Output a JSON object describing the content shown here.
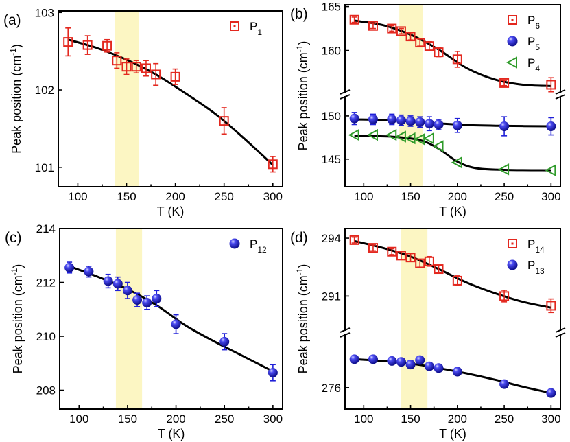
{
  "colors": {
    "red": "#e3281f",
    "blue": "#1f1fd8",
    "green": "#2f9b2a",
    "band": "#fbf5b8"
  },
  "chart_data": [
    {
      "type": "scatter",
      "panel_label": "(a)",
      "xlabel": "T (K)",
      "ylabel": "Peak position (cm",
      "ylabel_sup": "-1",
      "ylabel_close": ")",
      "xlim": [
        80,
        310
      ],
      "ylim": [
        100.75,
        103.02
      ],
      "xticks": [
        "100",
        "150",
        "200",
        "250",
        "300"
      ],
      "yticks": [
        "101",
        "102",
        "103"
      ],
      "highlight_band": [
        138,
        163
      ],
      "series": [
        {
          "name": "P",
          "sub": "1",
          "marker": "square",
          "color": "red",
          "x": [
            90,
            110,
            130,
            140,
            150,
            160,
            170,
            180,
            200,
            250,
            300
          ],
          "y": [
            102.62,
            102.58,
            102.57,
            102.38,
            102.3,
            102.3,
            102.28,
            102.2,
            102.17,
            101.6,
            101.04
          ],
          "err": [
            0.18,
            0.12,
            0.08,
            0.1,
            0.1,
            0.08,
            0.1,
            0.14,
            0.1,
            0.17,
            0.1
          ],
          "fit_x": [
            90,
            120,
            150,
            180,
            210,
            240,
            270,
            300
          ],
          "fit_y": [
            102.65,
            102.54,
            102.39,
            102.2,
            101.96,
            101.7,
            101.38,
            101.03
          ]
        }
      ]
    },
    {
      "type": "scatter",
      "panel_label": "(b)",
      "xlabel": "T (K)",
      "ylabel": "Peak position (cm",
      "ylabel_sup": "-1",
      "ylabel_close": ")",
      "xlim": [
        80,
        310
      ],
      "broken_axis": true,
      "upper_ylim": [
        155.2,
        165.2
      ],
      "lower_ylim": [
        141.8,
        152.3
      ],
      "xticks": [
        "100",
        "150",
        "200",
        "250",
        "300"
      ],
      "upper_yticks": [
        "160",
        "165"
      ],
      "lower_yticks": [
        "145",
        "150"
      ],
      "highlight_band": [
        138,
        163
      ],
      "series": [
        {
          "name": "P",
          "sub": "6",
          "marker": "square",
          "color": "red",
          "segment": "upper",
          "x": [
            90,
            110,
            130,
            140,
            150,
            160,
            170,
            180,
            200,
            250,
            300
          ],
          "y": [
            163.5,
            162.8,
            162.5,
            162.2,
            161.6,
            160.9,
            160.5,
            159.8,
            159.0,
            156.3,
            156.1
          ],
          "err": [
            0.3,
            0.3,
            0.3,
            0.3,
            0.4,
            0.4,
            0.5,
            0.5,
            0.9,
            0.3,
            0.8
          ],
          "fit_x": [
            90,
            120,
            150,
            180,
            210,
            240,
            270,
            300
          ],
          "fit_y": [
            163.4,
            162.9,
            161.8,
            160.1,
            158.0,
            156.7,
            156.1,
            155.95
          ]
        },
        {
          "name": "P",
          "sub": "5",
          "marker": "ball",
          "color": "blue",
          "segment": "lower",
          "x": [
            90,
            110,
            130,
            140,
            150,
            160,
            170,
            180,
            200,
            250,
            300
          ],
          "y": [
            149.7,
            149.6,
            149.6,
            149.5,
            149.4,
            149.3,
            149.1,
            149.0,
            148.9,
            148.8,
            148.8
          ],
          "err": [
            0.7,
            0.6,
            0.6,
            0.6,
            0.6,
            0.6,
            0.8,
            0.6,
            0.8,
            1.1,
            1.0
          ],
          "fit_x": [
            90,
            130,
            170,
            210,
            250,
            300
          ],
          "fit_y": [
            149.6,
            149.5,
            149.2,
            148.95,
            148.85,
            148.8
          ]
        },
        {
          "name": "P",
          "sub": "4",
          "marker": "triangle-left",
          "color": "green",
          "segment": "lower",
          "x": [
            90,
            110,
            130,
            140,
            150,
            160,
            170,
            180,
            200,
            250,
            300
          ],
          "y": [
            147.8,
            147.8,
            147.8,
            147.6,
            147.4,
            147.3,
            147.4,
            146.5,
            144.6,
            143.8,
            143.7
          ],
          "err": [
            0,
            0,
            0,
            0,
            0,
            0,
            0,
            0,
            0,
            0,
            0
          ],
          "fit_x": [
            90,
            130,
            160,
            180,
            200,
            220,
            250,
            300
          ],
          "fit_y": [
            147.7,
            147.6,
            147.2,
            146.2,
            144.7,
            143.95,
            143.75,
            143.7
          ]
        }
      ]
    },
    {
      "type": "scatter",
      "panel_label": "(c)",
      "xlabel": "T (K)",
      "ylabel": "Peak position (cm",
      "ylabel_sup": "-1",
      "ylabel_close": ")",
      "xlim": [
        80,
        310
      ],
      "ylim": [
        207.3,
        214.0
      ],
      "xticks": [
        "100",
        "150",
        "200",
        "250",
        "300"
      ],
      "yticks": [
        "208",
        "210",
        "212",
        "214"
      ],
      "highlight_band": [
        138,
        165
      ],
      "series": [
        {
          "name": "P",
          "sub": "12",
          "marker": "ball",
          "color": "blue",
          "x": [
            90,
            110,
            130,
            140,
            150,
            160,
            170,
            180,
            200,
            250,
            300
          ],
          "y": [
            212.55,
            212.4,
            212.05,
            211.95,
            211.7,
            211.35,
            211.25,
            211.4,
            210.45,
            209.8,
            208.65
          ],
          "err": [
            0.2,
            0.2,
            0.25,
            0.25,
            0.3,
            0.25,
            0.25,
            0.3,
            0.35,
            0.3,
            0.3
          ],
          "fit_x": [
            90,
            120,
            150,
            180,
            210,
            240,
            270,
            300
          ],
          "fit_y": [
            212.6,
            212.2,
            211.75,
            211.15,
            210.4,
            209.8,
            209.25,
            208.7
          ]
        }
      ]
    },
    {
      "type": "scatter",
      "panel_label": "(d)",
      "xlabel": "T (K)",
      "ylabel": "Peak position (cm",
      "ylabel_sup": "-1",
      "ylabel_close": ")",
      "xlim": [
        80,
        310
      ],
      "broken_axis": true,
      "upper_ylim": [
        289.2,
        294.5
      ],
      "lower_ylim": [
        274.8,
        279.0
      ],
      "xticks": [
        "100",
        "150",
        "200",
        "250",
        "300"
      ],
      "upper_yticks": [
        "291",
        "294"
      ],
      "lower_yticks": [
        "276"
      ],
      "highlight_band": [
        140,
        168
      ],
      "series": [
        {
          "name": "P",
          "sub": "14",
          "marker": "square",
          "color": "red",
          "segment": "upper",
          "x": [
            90,
            110,
            130,
            140,
            150,
            160,
            170,
            180,
            200,
            250,
            300
          ],
          "y": [
            293.9,
            293.5,
            293.3,
            293.1,
            293.0,
            292.7,
            292.8,
            292.4,
            291.8,
            291.0,
            290.5
          ],
          "err": [
            0.15,
            0.15,
            0.15,
            0.2,
            0.2,
            0.2,
            0.25,
            0.2,
            0.25,
            0.3,
            0.35
          ],
          "fit_x": [
            90,
            120,
            150,
            180,
            210,
            240,
            270,
            300
          ],
          "fit_y": [
            293.85,
            293.5,
            293.05,
            292.4,
            291.7,
            291.15,
            290.7,
            290.4
          ]
        },
        {
          "name": "P",
          "sub": "13",
          "marker": "ball",
          "color": "blue",
          "segment": "lower",
          "x": [
            90,
            110,
            130,
            140,
            150,
            160,
            170,
            180,
            200,
            250,
            300
          ],
          "y": [
            277.6,
            277.6,
            277.5,
            277.45,
            277.3,
            277.55,
            277.2,
            277.1,
            276.9,
            276.2,
            275.7
          ],
          "err": [
            0.15,
            0.15,
            0.15,
            0.2,
            0.2,
            0.2,
            0.15,
            0.2,
            0.2,
            0.2,
            0.2
          ],
          "fit_x": [
            90,
            120,
            150,
            180,
            210,
            240,
            270,
            300
          ],
          "fit_y": [
            277.6,
            277.5,
            277.35,
            277.1,
            276.8,
            276.45,
            276.05,
            275.7
          ]
        }
      ]
    }
  ]
}
